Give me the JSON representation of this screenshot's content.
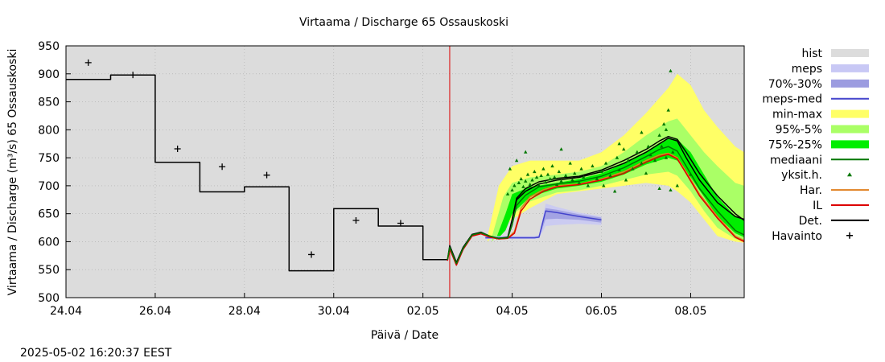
{
  "chart_data": {
    "type": "line",
    "title": "Virtaama / Discharge  65 Ossauskoski",
    "xlabel": "Päivä / Date",
    "ylabel": "Virtaama / Discharge (m³/s)  65 Ossauskoski",
    "ylim": [
      500,
      950
    ],
    "yticks": [
      500,
      550,
      600,
      650,
      700,
      750,
      800,
      850,
      900,
      950
    ],
    "xlim": [
      0,
      15.2
    ],
    "xticks": [
      {
        "x": 0,
        "label": "24.04"
      },
      {
        "x": 2,
        "label": "26.04"
      },
      {
        "x": 4,
        "label": "28.04"
      },
      {
        "x": 6,
        "label": "30.04"
      },
      {
        "x": 8,
        "label": "02.05"
      },
      {
        "x": 10,
        "label": "04.05"
      },
      {
        "x": 12,
        "label": "06.05"
      },
      {
        "x": 14,
        "label": "08.05"
      }
    ],
    "now_x": 8.6,
    "legend_placement": "right",
    "legend": [
      {
        "key": "hist",
        "label": "hist",
        "kind": "band",
        "color": "#dcdcdc"
      },
      {
        "key": "meps",
        "label": "meps",
        "kind": "band",
        "color": "#c8c8f5"
      },
      {
        "key": "meps7030",
        "label": "70%-30%",
        "kind": "band",
        "color": "#9c9ce0"
      },
      {
        "key": "mepsmed",
        "label": "meps-med",
        "kind": "line",
        "color": "#4444cc"
      },
      {
        "key": "minmax",
        "label": "min-max",
        "kind": "band",
        "color": "#ffff66"
      },
      {
        "key": "p955",
        "label": "95%-5%",
        "kind": "band",
        "color": "#aaff66"
      },
      {
        "key": "p7525",
        "label": "75%-25%",
        "kind": "band",
        "color": "#00ee00"
      },
      {
        "key": "mediaani",
        "label": "mediaani",
        "kind": "line",
        "color": "#007700"
      },
      {
        "key": "yksit",
        "label": "yksit.h.",
        "kind": "marker",
        "color": "#007700"
      },
      {
        "key": "har",
        "label": "Har.",
        "kind": "line",
        "color": "#e08020"
      },
      {
        "key": "il",
        "label": "IL",
        "kind": "line",
        "color": "#dd0000"
      },
      {
        "key": "det",
        "label": "Det.",
        "kind": "line",
        "color": "#000000"
      },
      {
        "key": "havainto",
        "label": "Havainto",
        "kind": "plus",
        "color": "#000000"
      }
    ],
    "series": {
      "observed_step": [
        [
          0,
          890
        ],
        [
          1,
          890
        ],
        [
          1,
          898
        ],
        [
          2,
          898
        ],
        [
          2,
          742
        ],
        [
          3,
          742
        ],
        [
          3,
          689
        ],
        [
          4,
          689
        ],
        [
          4,
          698
        ],
        [
          5,
          698
        ],
        [
          5,
          548
        ],
        [
          6,
          548
        ],
        [
          6,
          659
        ],
        [
          7,
          659
        ],
        [
          7,
          628
        ],
        [
          8,
          628
        ],
        [
          8,
          568
        ],
        [
          8.55,
          568
        ],
        [
          8.6,
          593
        ],
        [
          8.75,
          563
        ],
        [
          8.9,
          590
        ],
        [
          9.1,
          613
        ],
        [
          9.3,
          617
        ],
        [
          9.5,
          610
        ],
        [
          9.7,
          606
        ],
        [
          9.9,
          608
        ],
        [
          10,
          640
        ],
        [
          10.1,
          675
        ],
        [
          10.3,
          690
        ],
        [
          10.6,
          703
        ],
        [
          11,
          710
        ],
        [
          11.5,
          715
        ],
        [
          12,
          725
        ],
        [
          12.5,
          740
        ],
        [
          13,
          760
        ],
        [
          13.3,
          775
        ],
        [
          13.5,
          785
        ],
        [
          13.7,
          780
        ],
        [
          13.9,
          750
        ],
        [
          14.2,
          710
        ],
        [
          14.6,
          670
        ],
        [
          15.0,
          645
        ],
        [
          15.2,
          640
        ]
      ],
      "havainto": [
        [
          0.5,
          920
        ],
        [
          1.5,
          898
        ],
        [
          2.5,
          766
        ],
        [
          3.5,
          734
        ],
        [
          4.5,
          719
        ],
        [
          5.5,
          577
        ],
        [
          6.5,
          638
        ],
        [
          7.5,
          633
        ]
      ],
      "mediaani": [
        [
          8.55,
          568
        ],
        [
          8.6,
          590
        ],
        [
          8.75,
          561
        ],
        [
          8.9,
          588
        ],
        [
          9.1,
          612
        ],
        [
          9.3,
          616
        ],
        [
          9.5,
          610
        ],
        [
          9.7,
          606
        ],
        [
          9.9,
          607
        ],
        [
          10,
          630
        ],
        [
          10.1,
          665
        ],
        [
          10.3,
          683
        ],
        [
          10.6,
          698
        ],
        [
          11,
          703
        ],
        [
          11.5,
          708
        ],
        [
          12,
          717
        ],
        [
          12.5,
          732
        ],
        [
          13,
          752
        ],
        [
          13.3,
          765
        ],
        [
          13.5,
          770
        ],
        [
          13.7,
          762
        ],
        [
          13.9,
          735
        ],
        [
          14.2,
          695
        ],
        [
          14.6,
          655
        ],
        [
          15.0,
          620
        ],
        [
          15.2,
          612
        ]
      ],
      "har": [
        [
          8.55,
          568
        ],
        [
          8.6,
          588
        ],
        [
          8.75,
          560
        ],
        [
          8.9,
          587
        ],
        [
          9.1,
          611
        ],
        [
          9.3,
          615
        ],
        [
          9.5,
          609
        ],
        [
          9.7,
          605
        ],
        [
          9.9,
          606
        ],
        [
          10.05,
          618
        ],
        [
          10.2,
          660
        ],
        [
          10.4,
          680
        ],
        [
          10.7,
          693
        ],
        [
          11,
          700
        ],
        [
          11.5,
          703
        ],
        [
          12,
          712
        ],
        [
          12.5,
          725
        ],
        [
          13,
          745
        ],
        [
          13.3,
          755
        ],
        [
          13.5,
          758
        ],
        [
          13.7,
          750
        ],
        [
          13.9,
          725
        ],
        [
          14.2,
          685
        ],
        [
          14.6,
          645
        ],
        [
          15.0,
          610
        ],
        [
          15.2,
          602
        ]
      ],
      "il": [
        [
          8.55,
          566
        ],
        [
          8.6,
          587
        ],
        [
          8.75,
          558
        ],
        [
          8.9,
          586
        ],
        [
          9.1,
          610
        ],
        [
          9.3,
          614
        ],
        [
          9.5,
          608
        ],
        [
          9.7,
          605
        ],
        [
          9.9,
          606
        ],
        [
          10.05,
          615
        ],
        [
          10.2,
          655
        ],
        [
          10.4,
          676
        ],
        [
          10.7,
          690
        ],
        [
          11,
          698
        ],
        [
          11.5,
          702
        ],
        [
          12,
          710
        ],
        [
          12.5,
          722
        ],
        [
          13,
          742
        ],
        [
          13.3,
          752
        ],
        [
          13.5,
          756
        ],
        [
          13.7,
          748
        ],
        [
          13.9,
          722
        ],
        [
          14.2,
          682
        ],
        [
          14.6,
          642
        ],
        [
          15.0,
          608
        ],
        [
          15.2,
          600
        ]
      ],
      "mepsmed": [
        [
          9.4,
          607
        ],
        [
          10.5,
          607
        ],
        [
          10.6,
          608
        ],
        [
          10.75,
          655
        ],
        [
          11,
          652
        ],
        [
          11.5,
          645
        ],
        [
          12,
          639
        ]
      ],
      "meps_band": {
        "x": [
          9.4,
          10.5,
          10.6,
          10.75,
          11,
          11.5,
          12
        ],
        "lo": [
          605,
          605,
          606,
          628,
          630,
          632,
          630
        ],
        "hi": [
          610,
          610,
          612,
          668,
          662,
          652,
          645
        ]
      },
      "meps7030_band": {
        "x": [
          9.4,
          10.5,
          10.6,
          10.75,
          11,
          11.5,
          12
        ],
        "lo": [
          606,
          606,
          607,
          640,
          641,
          639,
          634
        ],
        "hi": [
          609,
          609,
          610,
          660,
          657,
          649,
          643
        ]
      },
      "minmax_band": {
        "x": [
          9.45,
          9.7,
          10,
          10.4,
          11,
          11.5,
          12,
          12.5,
          13,
          13.5,
          13.7,
          14,
          14.3,
          14.6,
          15,
          15.2
        ],
        "lo": [
          600,
          620,
          640,
          660,
          685,
          690,
          695,
          700,
          705,
          700,
          690,
          670,
          640,
          610,
          600,
          598
        ],
        "hi": [
          610,
          700,
          735,
          745,
          745,
          745,
          760,
          790,
          830,
          875,
          900,
          880,
          835,
          805,
          770,
          760
        ]
      },
      "p955_band": {
        "x": [
          9.55,
          9.8,
          10,
          10.4,
          11,
          11.5,
          12,
          12.5,
          13,
          13.5,
          13.7,
          14,
          14.3,
          14.6,
          15,
          15.2
        ],
        "lo": [
          600,
          625,
          648,
          672,
          688,
          692,
          700,
          710,
          720,
          725,
          718,
          690,
          655,
          625,
          605,
          600
        ],
        "hi": [
          610,
          680,
          705,
          715,
          720,
          725,
          735,
          760,
          790,
          815,
          820,
          790,
          760,
          735,
          705,
          700
        ]
      },
      "p7525_band": {
        "x": [
          9.65,
          9.85,
          10,
          10.4,
          11,
          11.5,
          12,
          12.5,
          13,
          13.5,
          13.7,
          14,
          14.3,
          14.6,
          15,
          15.2
        ],
        "lo": [
          603,
          620,
          650,
          680,
          695,
          700,
          707,
          720,
          738,
          750,
          745,
          715,
          680,
          645,
          615,
          608
        ],
        "hi": [
          608,
          650,
          685,
          698,
          705,
          712,
          722,
          740,
          760,
          785,
          783,
          760,
          720,
          680,
          645,
          638
        ]
      },
      "det": [
        [
          10.0,
          640
        ],
        [
          10.1,
          678
        ],
        [
          10.3,
          695
        ],
        [
          10.6,
          707
        ],
        [
          11,
          713
        ],
        [
          11.5,
          717
        ],
        [
          12,
          728
        ],
        [
          12.5,
          745
        ],
        [
          13,
          765
        ],
        [
          13.3,
          780
        ],
        [
          13.5,
          788
        ],
        [
          13.7,
          783
        ],
        [
          13.9,
          760
        ],
        [
          14.2,
          722
        ],
        [
          14.6,
          682
        ],
        [
          15.0,
          650
        ],
        [
          15.2,
          638
        ]
      ],
      "yksit": [
        [
          9.9,
          685
        ],
        [
          10.0,
          692
        ],
        [
          10.05,
          700
        ],
        [
          10.15,
          705
        ],
        [
          10.2,
          712
        ],
        [
          10.25,
          698
        ],
        [
          10.3,
          708
        ],
        [
          10.35,
          720
        ],
        [
          10.4,
          702
        ],
        [
          10.45,
          710
        ],
        [
          10.5,
          725
        ],
        [
          10.55,
          715
        ],
        [
          10.6,
          700
        ],
        [
          10.65,
          718
        ],
        [
          10.7,
          730
        ],
        [
          10.75,
          706
        ],
        [
          10.8,
          720
        ],
        [
          10.85,
          712
        ],
        [
          10.9,
          735
        ],
        [
          10.95,
          715
        ],
        [
          11.0,
          702
        ],
        [
          11.05,
          725
        ],
        [
          11.1,
          708
        ],
        [
          11.2,
          718
        ],
        [
          11.3,
          740
        ],
        [
          11.35,
          710
        ],
        [
          11.4,
          722
        ],
        [
          11.5,
          705
        ],
        [
          11.55,
          730
        ],
        [
          11.6,
          715
        ],
        [
          11.7,
          700
        ],
        [
          11.8,
          735
        ],
        [
          11.9,
          712
        ],
        [
          12.0,
          725
        ],
        [
          12.05,
          700
        ],
        [
          12.1,
          740
        ],
        [
          12.2,
          718
        ],
        [
          12.3,
          690
        ],
        [
          12.35,
          750
        ],
        [
          12.4,
          728
        ],
        [
          12.5,
          765
        ],
        [
          12.55,
          710
        ],
        [
          12.6,
          745
        ],
        [
          12.7,
          730
        ],
        [
          12.8,
          760
        ],
        [
          12.9,
          740
        ],
        [
          13.0,
          722
        ],
        [
          13.05,
          770
        ],
        [
          13.1,
          755
        ],
        [
          13.2,
          745
        ],
        [
          13.3,
          790
        ],
        [
          13.35,
          770
        ],
        [
          13.4,
          810
        ],
        [
          13.45,
          800
        ],
        [
          13.5,
          835
        ],
        [
          13.55,
          905
        ],
        [
          13.6,
          760
        ],
        [
          13.45,
          750
        ],
        [
          13.3,
          695
        ],
        [
          13.55,
          692
        ],
        [
          14.0,
          720
        ],
        [
          13.7,
          700
        ],
        [
          10.3,
          760
        ],
        [
          9.95,
          730
        ],
        [
          10.1,
          745
        ],
        [
          11.1,
          765
        ],
        [
          12.4,
          775
        ],
        [
          12.9,
          795
        ]
      ]
    }
  },
  "footer": {
    "timestamp": "2025-05-02 16:20:37 EEST"
  }
}
